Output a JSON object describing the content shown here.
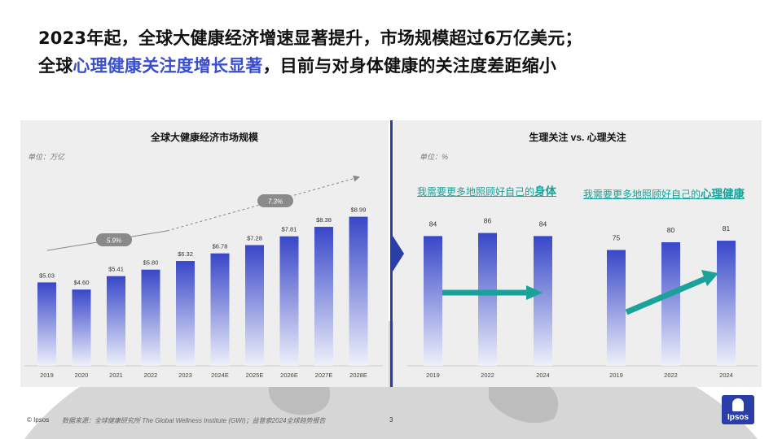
{
  "title": {
    "line1": "2023年起，全球大健康经济增速显著提升，市场规模超过6万亿美元；",
    "line2_pre": "全球",
    "line2_highlight": "心理健康关注度增长显著",
    "line2_post": "，目前与对身体健康的关注度差距缩小"
  },
  "left_panel": {
    "title": "全球大健康经济市场规模",
    "unit": "单位：万亿",
    "growth_labels": [
      "5.9%",
      "7.3%"
    ]
  },
  "right_panel": {
    "title": "生理关注 vs. 心理关注",
    "unit": "单位：%",
    "group1_label_pre": "我需要更多地照顾好自己的",
    "group1_label_bold": "身体",
    "group2_label_pre": "我需要更多地照顾好自己的",
    "group2_label_bold": "心理健康"
  },
  "footer": {
    "copyright": "© Ipsos",
    "source": "数据来源：全球健康研究所 The Global Wellness Institute (GWI)；益普索2024全球趋势报告",
    "page": "3",
    "logo": "Ipsos"
  },
  "colors": {
    "bar_top": "#3847c8",
    "bar_bottom": "#eef0fb",
    "accent": "#3a4ed0",
    "teal": "#1aa19a",
    "divider": "#2b3ea8"
  },
  "chart_data": [
    {
      "type": "bar",
      "title": "全球大健康经济市场规模",
      "ylabel": "单位：万亿",
      "categories": [
        "2019",
        "2020",
        "2021",
        "2022",
        "2023",
        "2024E",
        "2025E",
        "2026E",
        "2027E",
        "2028E"
      ],
      "values": [
        5.03,
        4.6,
        5.41,
        5.8,
        6.32,
        6.78,
        7.28,
        7.81,
        8.38,
        8.99
      ],
      "data_labels": [
        "$5.03",
        "$4.60",
        "$5.41",
        "$5.80",
        "$6.32",
        "$6.78",
        "$7.28",
        "$7.81",
        "$8.38",
        "$8.99"
      ],
      "annotations": [
        "5.9%",
        "7.3%"
      ],
      "grid": false
    },
    {
      "type": "bar",
      "title": "生理关注 vs. 心理关注",
      "ylabel": "单位：%",
      "groups": [
        {
          "name": "我需要更多地照顾好自己的身体",
          "categories": [
            "2019",
            "2022",
            "2024"
          ],
          "values": [
            84,
            86,
            84
          ]
        },
        {
          "name": "我需要更多地照顾好自己的心理健康",
          "categories": [
            "2019",
            "2022",
            "2024"
          ],
          "values": [
            75,
            80,
            81
          ]
        }
      ],
      "grid": false
    }
  ]
}
